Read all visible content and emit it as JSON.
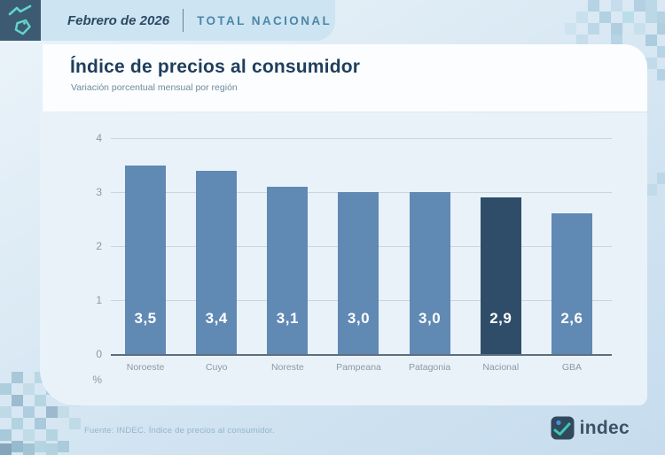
{
  "header": {
    "period": "Febrero de 2026",
    "scope": "TOTAL NACIONAL"
  },
  "title": "Índice de precios al consumidor",
  "subtitle": "Variación porcentual mensual por región",
  "footer": {
    "source": "Fuente: INDEC. Índice de precios al consumidor.",
    "logo_text": "indec"
  },
  "icons": {
    "header_tile": "price-trend-tag-icon",
    "footer_logo": "indec-logo-icon"
  },
  "colors": {
    "tile_bg": "#3d5a73",
    "tile_glyph": "#63d6c9",
    "header_band_bg": "#cde4f2",
    "accent_text": "#4c87a7",
    "title_text": "#1f3e5d",
    "panel_bg": "#e9f2f9",
    "bar": "#6089b4",
    "bar_highlight": "#2f4d68",
    "value_label": "#ffffff",
    "axis_label": "#8c98a2"
  },
  "chart_data": {
    "type": "bar",
    "title": "Índice de precios al consumidor",
    "subtitle": "Variación porcentual mensual por región",
    "categories": [
      "Noroeste",
      "Cuyo",
      "Noreste",
      "Pampeana",
      "Patagonia",
      "Nacional",
      "GBA"
    ],
    "values": [
      3.5,
      3.4,
      3.1,
      3.0,
      3.0,
      2.9,
      2.6
    ],
    "value_labels": [
      "3,5",
      "3,4",
      "3,1",
      "3,0",
      "3,0",
      "2,9",
      "2,6"
    ],
    "highlight_category": "Nacional",
    "xlabel": "",
    "ylabel": "%",
    "ylim": [
      0,
      4
    ],
    "yticks": [
      0,
      1,
      2,
      3,
      4
    ],
    "grid": true,
    "legend": false,
    "bar_color": "#6089b4",
    "highlight_color": "#2f4d68"
  }
}
